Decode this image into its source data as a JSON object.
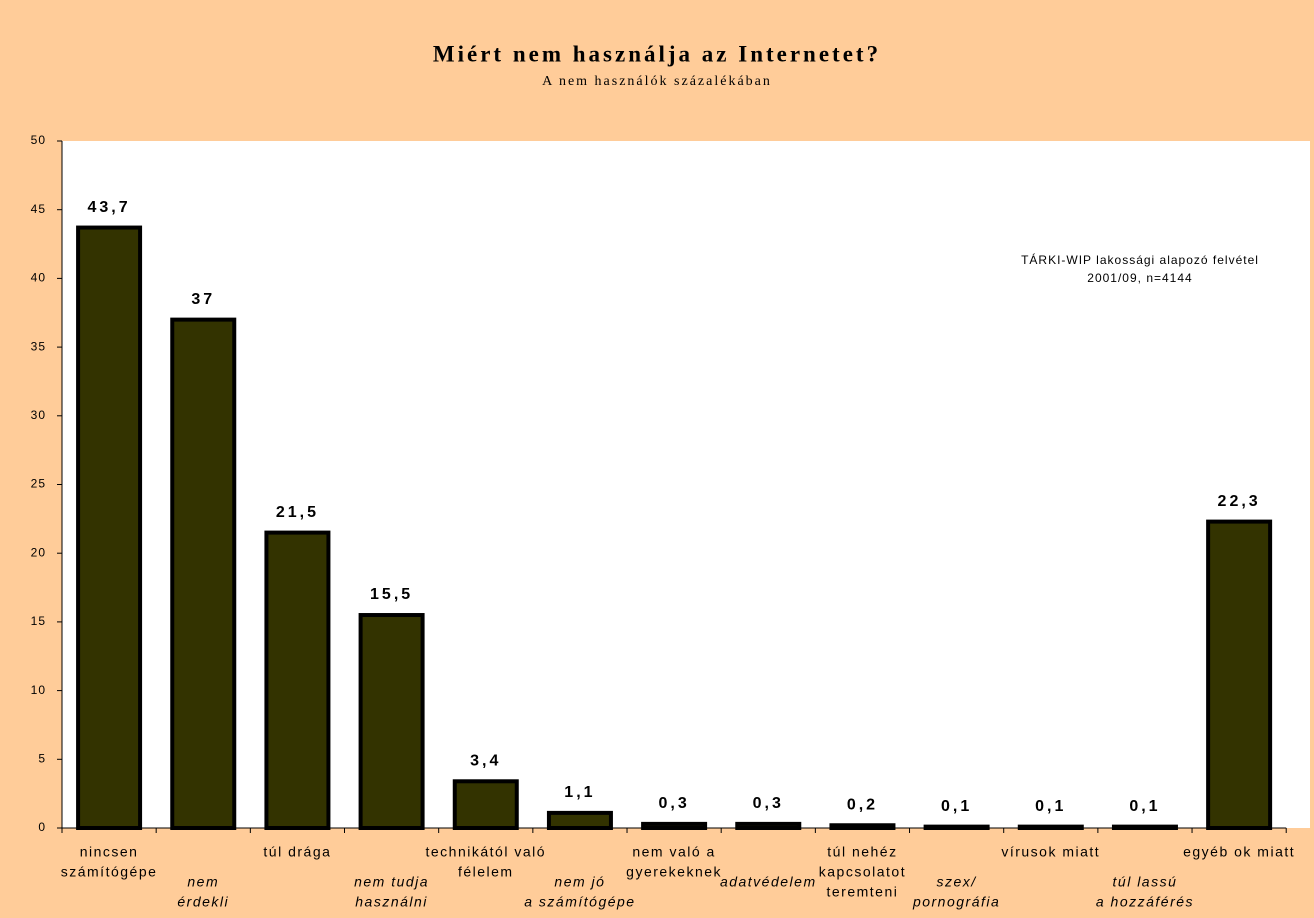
{
  "chart_data": {
    "type": "bar",
    "title": "Miért nem használja az Internetet?",
    "subtitle": "A nem használók százalékában",
    "annotation": [
      "TÁRKI-WIP lakossági alapozó felvétel",
      "2001/09, n=4144"
    ],
    "categories": [
      [
        "nincsen",
        "számítógépe"
      ],
      [
        "nem",
        "érdekli"
      ],
      [
        "túl drága"
      ],
      [
        "nem tudja",
        "használni"
      ],
      [
        "technikától való",
        "félelem"
      ],
      [
        "nem jó",
        "a számítógépe"
      ],
      [
        "nem való a",
        "gyerekeknek"
      ],
      [
        "adatvédelem"
      ],
      [
        "túl nehéz",
        "kapcsolatot",
        "teremteni"
      ],
      [
        "szex/",
        "pornográfia"
      ],
      [
        "vírusok miatt"
      ],
      [
        "túl lassú",
        "a hozzáférés"
      ],
      [
        "egyéb ok miatt"
      ]
    ],
    "italic": [
      false,
      true,
      false,
      true,
      false,
      true,
      false,
      true,
      false,
      true,
      false,
      true,
      false
    ],
    "values": [
      43.7,
      37,
      21.5,
      15.5,
      3.4,
      1.1,
      0.3,
      0.3,
      0.2,
      0.1,
      0.1,
      0.1,
      22.3
    ],
    "value_labels": [
      "43,7",
      "37",
      "21,5",
      "15,5",
      "3,4",
      "1,1",
      "0,3",
      "0,3",
      "0,2",
      "0,1",
      "0,1",
      "0,1",
      "22,3"
    ],
    "color": "#333300",
    "ylim": [
      0,
      50
    ],
    "yticks": [
      0,
      5,
      10,
      15,
      20,
      25,
      30,
      35,
      40,
      45,
      50
    ],
    "grid": false
  }
}
